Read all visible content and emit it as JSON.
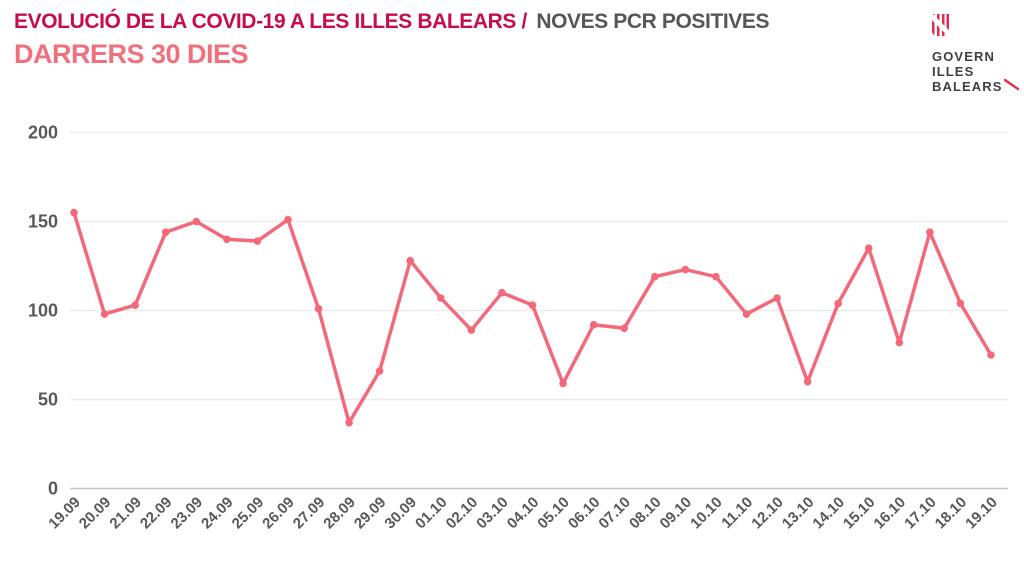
{
  "header": {
    "title_primary": "EVOLUCIÓ DE LA COVID-19 A LES ILLES BALEARS /",
    "title_secondary": "NOVES PCR POSITIVES",
    "subtitle": "DARRERS 30 DIES"
  },
  "logo": {
    "line1": "GOVERN",
    "line2": "ILLES",
    "line3": "BALEARS",
    "slash_icon": "red-diagonal-slash"
  },
  "colors": {
    "title_primary": "#c60b4f",
    "title_secondary": "#55565a",
    "subtitle": "#f0707e",
    "line": "#f4697a",
    "marker": "#f4697a",
    "axis_text": "#58595b",
    "gridline": "#ececec",
    "zeroline": "#c6c6c6",
    "logo_red": "#e62a4f",
    "logo_text": "#3f4043"
  },
  "chart_data": {
    "type": "line",
    "title": "EVOLUCIÓ DE LA COVID-19 A LES ILLES BALEARS / NOVES PCR POSITIVES — DARRERS 30 DIES",
    "xlabel": "",
    "ylabel": "",
    "ylim": [
      0,
      200
    ],
    "yticks": [
      0,
      50,
      100,
      150,
      200
    ],
    "grid": true,
    "legend": false,
    "marker": "circle",
    "categories": [
      "19.09",
      "20.09",
      "21.09",
      "22.09",
      "23.09",
      "24.09",
      "25.09",
      "26.09",
      "27.09",
      "28.09",
      "29.09",
      "30.09",
      "01.10",
      "02.10",
      "03.10",
      "04.10",
      "05.10",
      "06.10",
      "07.10",
      "08.10",
      "09.10",
      "10.10",
      "11.10",
      "12.10",
      "13.10",
      "14.10",
      "15.10",
      "16.10",
      "17.10",
      "18.10",
      "19.10"
    ],
    "values": [
      155,
      98,
      103,
      144,
      150,
      140,
      139,
      151,
      101,
      37,
      66,
      128,
      107,
      89,
      110,
      103,
      59,
      92,
      90,
      119,
      123,
      119,
      98,
      107,
      60,
      104,
      135,
      82,
      144,
      104,
      75
    ]
  }
}
